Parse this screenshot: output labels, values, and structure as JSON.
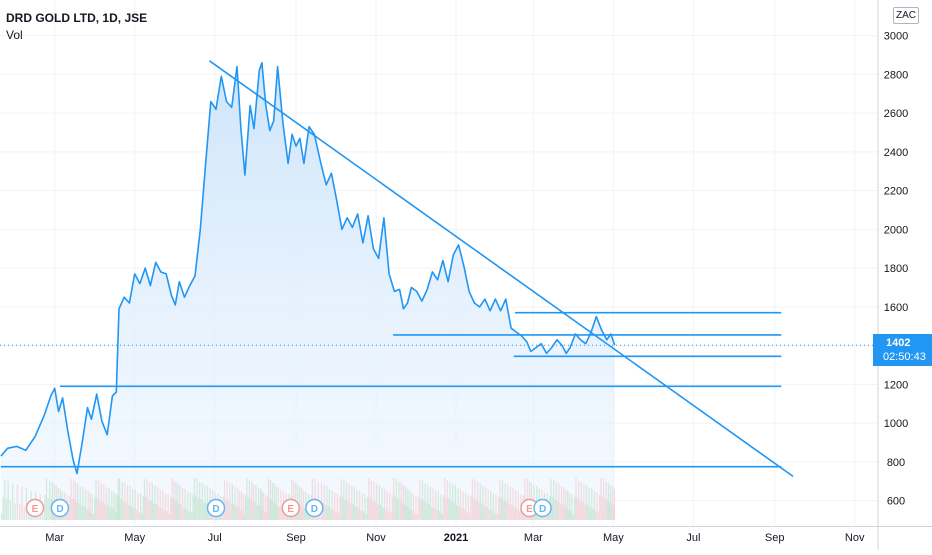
{
  "header": {
    "symbol_title": "DRD GOLD LTD, 1D, JSE",
    "indicator_label": "Vol",
    "currency_badge": "ZAC"
  },
  "last_price": {
    "value": "1402",
    "countdown": "02:50:43"
  },
  "colors": {
    "line": "#2196f3",
    "area_top": "#cfe5fb",
    "vol_up": "#a5d6a7",
    "vol_down": "#f7b3b3",
    "earnings": "#ef9a9a",
    "dividends": "#64b5f6",
    "grid": "#f0f3fa",
    "axis_text": "#131722"
  },
  "chart_data": {
    "type": "line",
    "title": "DRD GOLD LTD, 1D, JSE",
    "xlabel": "",
    "ylabel": "",
    "ylim": [
      500,
      3060
    ],
    "y_ticks": [
      600,
      800,
      1000,
      1200,
      1400,
      1600,
      1800,
      2000,
      2200,
      2400,
      2600,
      2800,
      3000
    ],
    "x_tick_labels": [
      {
        "date": "2020-03-01",
        "label": "Mar"
      },
      {
        "date": "2020-05-01",
        "label": "May"
      },
      {
        "date": "2020-07-01",
        "label": "Jul"
      },
      {
        "date": "2020-09-01",
        "label": "Sep"
      },
      {
        "date": "2020-11-01",
        "label": "Nov"
      },
      {
        "date": "2021-01-01",
        "label": "2021"
      },
      {
        "date": "2021-03-01",
        "label": "Mar"
      },
      {
        "date": "2021-05-01",
        "label": "May"
      },
      {
        "date": "2021-07-01",
        "label": "Jul"
      },
      {
        "date": "2021-09-01",
        "label": "Sep"
      },
      {
        "date": "2021-11-01",
        "label": "Nov"
      }
    ],
    "series": [
      {
        "values": [
          [
            "2020-01-20",
            830
          ],
          [
            "2020-01-25",
            870
          ],
          [
            "2020-02-01",
            880
          ],
          [
            "2020-02-08",
            860
          ],
          [
            "2020-02-15",
            930
          ],
          [
            "2020-02-22",
            1040
          ],
          [
            "2020-02-27",
            1140
          ],
          [
            "2020-03-01",
            1180
          ],
          [
            "2020-03-04",
            1060
          ],
          [
            "2020-03-07",
            1130
          ],
          [
            "2020-03-11",
            960
          ],
          [
            "2020-03-15",
            810
          ],
          [
            "2020-03-18",
            740
          ],
          [
            "2020-03-22",
            900
          ],
          [
            "2020-03-26",
            1080
          ],
          [
            "2020-03-29",
            1020
          ],
          [
            "2020-04-02",
            1150
          ],
          [
            "2020-04-06",
            1010
          ],
          [
            "2020-04-10",
            940
          ],
          [
            "2020-04-14",
            1140
          ],
          [
            "2020-04-17",
            1160
          ],
          [
            "2020-04-19",
            1590
          ],
          [
            "2020-04-23",
            1650
          ],
          [
            "2020-04-27",
            1620
          ],
          [
            "2020-05-01",
            1770
          ],
          [
            "2020-05-05",
            1720
          ],
          [
            "2020-05-09",
            1800
          ],
          [
            "2020-05-13",
            1710
          ],
          [
            "2020-05-17",
            1830
          ],
          [
            "2020-05-21",
            1780
          ],
          [
            "2020-05-25",
            1770
          ],
          [
            "2020-05-29",
            1660
          ],
          [
            "2020-06-01",
            1610
          ],
          [
            "2020-06-04",
            1730
          ],
          [
            "2020-06-08",
            1650
          ],
          [
            "2020-06-12",
            1710
          ],
          [
            "2020-06-16",
            1760
          ],
          [
            "2020-06-20",
            2000
          ],
          [
            "2020-06-24",
            2330
          ],
          [
            "2020-06-28",
            2660
          ],
          [
            "2020-07-02",
            2620
          ],
          [
            "2020-07-06",
            2790
          ],
          [
            "2020-07-10",
            2660
          ],
          [
            "2020-07-14",
            2630
          ],
          [
            "2020-07-18",
            2840
          ],
          [
            "2020-07-21",
            2520
          ],
          [
            "2020-07-24",
            2280
          ],
          [
            "2020-07-28",
            2640
          ],
          [
            "2020-07-31",
            2520
          ],
          [
            "2020-08-04",
            2820
          ],
          [
            "2020-08-06",
            2860
          ],
          [
            "2020-08-09",
            2640
          ],
          [
            "2020-08-12",
            2510
          ],
          [
            "2020-08-15",
            2560
          ],
          [
            "2020-08-18",
            2840
          ],
          [
            "2020-08-22",
            2550
          ],
          [
            "2020-08-26",
            2340
          ],
          [
            "2020-08-29",
            2490
          ],
          [
            "2020-09-01",
            2430
          ],
          [
            "2020-09-04",
            2470
          ],
          [
            "2020-09-07",
            2340
          ],
          [
            "2020-09-11",
            2530
          ],
          [
            "2020-09-15",
            2490
          ],
          [
            "2020-09-20",
            2340
          ],
          [
            "2020-09-24",
            2230
          ],
          [
            "2020-09-28",
            2290
          ],
          [
            "2020-10-02",
            2150
          ],
          [
            "2020-10-06",
            2000
          ],
          [
            "2020-10-10",
            2060
          ],
          [
            "2020-10-14",
            2010
          ],
          [
            "2020-10-18",
            2080
          ],
          [
            "2020-10-22",
            1930
          ],
          [
            "2020-10-26",
            2070
          ],
          [
            "2020-10-30",
            1900
          ],
          [
            "2020-11-03",
            1850
          ],
          [
            "2020-11-07",
            2060
          ],
          [
            "2020-11-11",
            1770
          ],
          [
            "2020-11-15",
            1680
          ],
          [
            "2020-11-19",
            1690
          ],
          [
            "2020-11-22",
            1590
          ],
          [
            "2020-11-25",
            1620
          ],
          [
            "2020-11-28",
            1700
          ],
          [
            "2020-12-02",
            1680
          ],
          [
            "2020-12-06",
            1630
          ],
          [
            "2020-12-10",
            1690
          ],
          [
            "2020-12-14",
            1780
          ],
          [
            "2020-12-18",
            1740
          ],
          [
            "2020-12-22",
            1840
          ],
          [
            "2020-12-26",
            1730
          ],
          [
            "2020-12-30",
            1870
          ],
          [
            "2021-01-03",
            1920
          ],
          [
            "2021-01-07",
            1810
          ],
          [
            "2021-01-11",
            1680
          ],
          [
            "2021-01-15",
            1620
          ],
          [
            "2021-01-19",
            1600
          ],
          [
            "2021-01-23",
            1640
          ],
          [
            "2021-01-27",
            1580
          ],
          [
            "2021-01-31",
            1640
          ],
          [
            "2021-02-04",
            1580
          ],
          [
            "2021-02-08",
            1640
          ],
          [
            "2021-02-12",
            1490
          ],
          [
            "2021-02-16",
            1470
          ],
          [
            "2021-02-20",
            1450
          ],
          [
            "2021-02-24",
            1420
          ],
          [
            "2021-02-27",
            1370
          ],
          [
            "2021-03-03",
            1390
          ],
          [
            "2021-03-07",
            1410
          ],
          [
            "2021-03-11",
            1360
          ],
          [
            "2021-03-15",
            1390
          ],
          [
            "2021-03-19",
            1430
          ],
          [
            "2021-03-23",
            1400
          ],
          [
            "2021-03-26",
            1360
          ],
          [
            "2021-03-29",
            1390
          ],
          [
            "2021-04-02",
            1460
          ],
          [
            "2021-04-06",
            1430
          ],
          [
            "2021-04-10",
            1410
          ],
          [
            "2021-04-14",
            1470
          ],
          [
            "2021-04-18",
            1550
          ],
          [
            "2021-04-22",
            1480
          ],
          [
            "2021-04-26",
            1430
          ],
          [
            "2021-04-29",
            1460
          ],
          [
            "2021-05-02",
            1402
          ]
        ]
      }
    ],
    "drawings": [
      {
        "kind": "trendline",
        "from": [
          "2020-06-27",
          2870
        ],
        "to": [
          "2021-09-15",
          725
        ]
      },
      {
        "kind": "horizontal",
        "y": 1570,
        "from": "2021-02-15",
        "to": "2021-09-06"
      },
      {
        "kind": "horizontal",
        "y": 1455,
        "from": "2020-11-14",
        "to": "2021-09-06"
      },
      {
        "kind": "horizontal",
        "y": 1345,
        "from": "2021-02-14",
        "to": "2021-09-06"
      },
      {
        "kind": "horizontal",
        "y": 1190,
        "from": "2020-03-05",
        "to": "2021-09-06"
      },
      {
        "kind": "horizontal",
        "y": 775,
        "from": "2020-01-20",
        "to": "2021-09-06"
      }
    ],
    "events": [
      {
        "type": "E",
        "date": "2020-02-15"
      },
      {
        "type": "D",
        "date": "2020-03-05"
      },
      {
        "type": "D",
        "date": "2020-07-02"
      },
      {
        "type": "E",
        "date": "2020-08-28"
      },
      {
        "type": "D",
        "date": "2020-09-15"
      },
      {
        "type": "E",
        "date": "2021-02-26"
      },
      {
        "type": "D",
        "date": "2021-03-08"
      }
    ],
    "grid": true,
    "legend": "none"
  }
}
